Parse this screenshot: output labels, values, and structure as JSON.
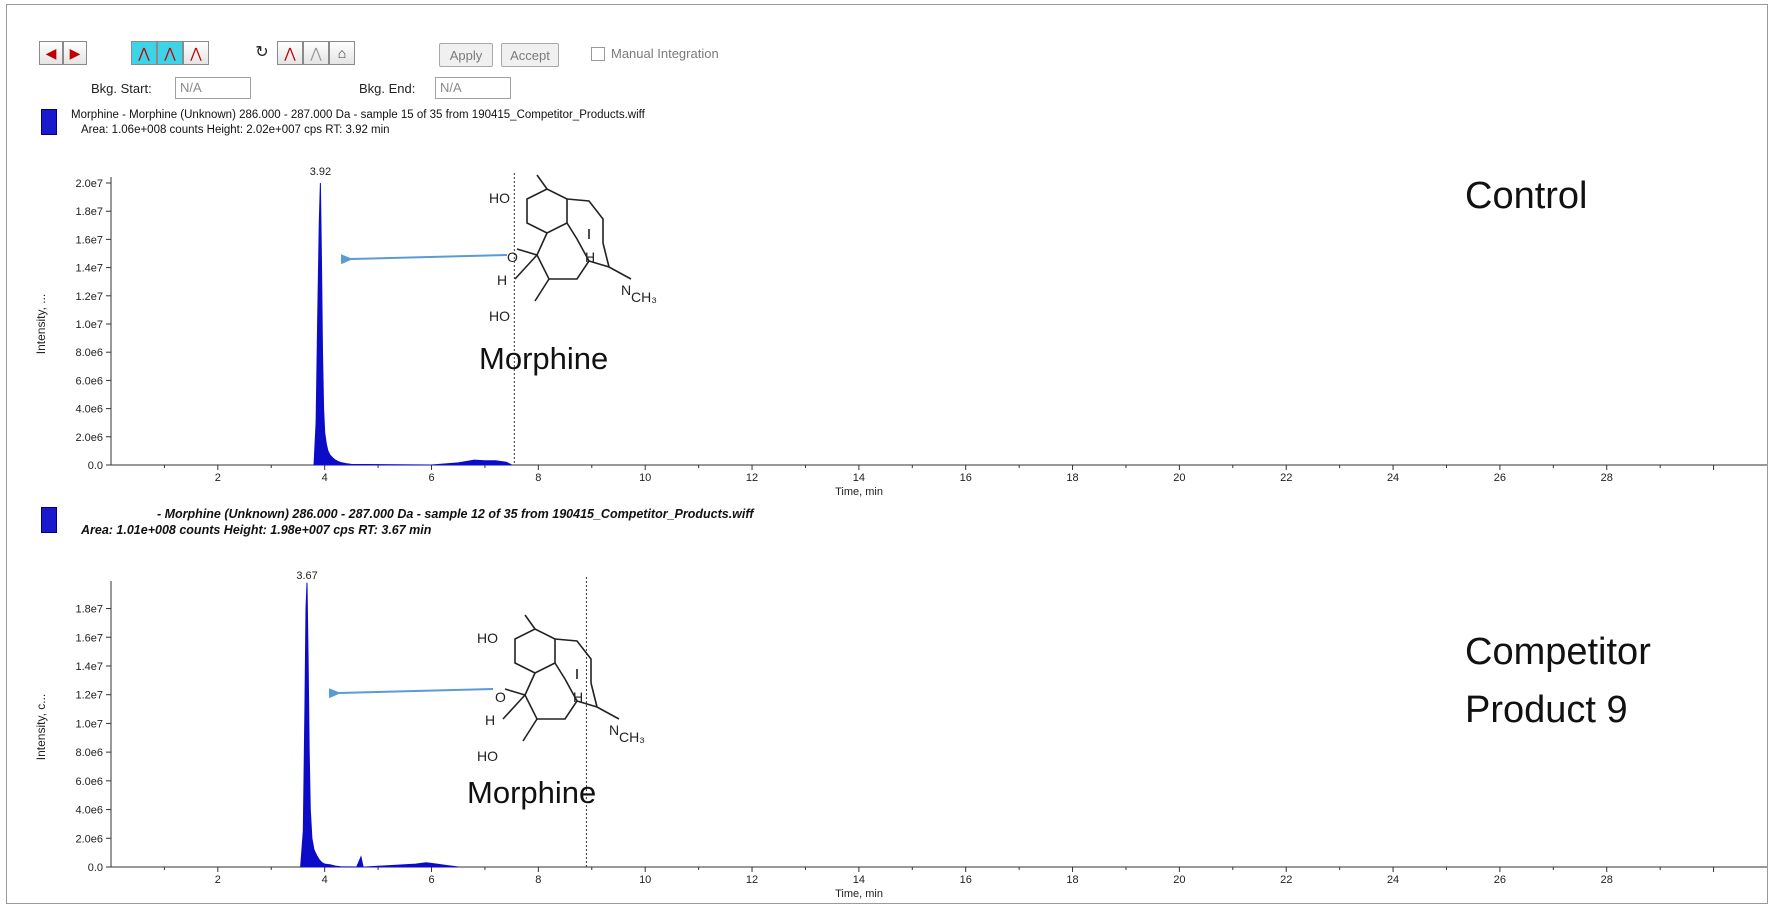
{
  "toolbar": {
    "apply_label": "Apply",
    "accept_label": "Accept",
    "manual_integration_label": "Manual Integration",
    "bkg_start_label": "Bkg. Start:",
    "bkg_start_value": "N/A",
    "bkg_end_label": "Bkg. End:",
    "bkg_end_value": "N/A"
  },
  "colors": {
    "trace": "#0b0bc8",
    "arrow": "#5b9bd5",
    "swatch": "#1a1acc"
  },
  "panels": [
    {
      "header_line1": "Morphine - Morphine (Unknown) 286.000 - 287.000 Da - sample 15 of 35 from 190415_Competitor_Products.wiff",
      "header_line2": "Area: 1.06e+008 counts  Height: 2.02e+007 cps  RT: 3.92 min",
      "side_label": "Control",
      "molecule_label": "Morphine"
    },
    {
      "header_line1": "- Morphine (Unknown) 286.000 - 287.000 Da - sample 12 of 35 from 190415_Competitor_Products.wiff",
      "header_line2": "Area: 1.01e+008 counts  Height: 1.98e+007 cps  RT: 3.67 min",
      "side_label_line1": "Competitor",
      "side_label_line2": "Product 9",
      "molecule_label": "Morphine"
    }
  ],
  "chart_data": [
    {
      "type": "line",
      "xlabel": "Time, min",
      "ylabel": "Intensity, ...",
      "xlim": [
        0,
        31
      ],
      "ylim": [
        0,
        20000000
      ],
      "xticks": [
        2,
        4,
        6,
        8,
        10,
        12,
        14,
        16,
        18,
        20,
        22,
        24,
        26,
        28
      ],
      "xtick_labels": [
        "2",
        "4",
        "6",
        "8",
        "10",
        "12",
        "14",
        "16",
        "18",
        "20",
        "22",
        "24",
        "26",
        "28"
      ],
      "yticks": [
        0,
        2000000,
        4000000,
        6000000,
        8000000,
        10000000,
        12000000,
        14000000,
        16000000,
        18000000,
        20000000
      ],
      "ytick_labels": [
        "0.0",
        "2.0e6",
        "4.0e6",
        "6.0e6",
        "8.0e6",
        "1.0e7",
        "1.2e7",
        "1.4e7",
        "1.6e7",
        "1.8e7",
        "2.0e7"
      ],
      "peak_label": "3.92",
      "peak_rt": 3.92,
      "marker_line_x": 7.55,
      "series": [
        {
          "x": [
            3.8,
            3.84,
            3.87,
            3.9,
            3.92,
            3.94,
            3.96,
            3.98,
            4.0,
            4.03,
            4.06,
            4.1,
            4.15,
            4.2,
            4.25,
            4.3,
            4.4,
            4.5,
            6.0,
            6.5,
            6.8,
            7.0,
            7.2,
            7.4,
            7.5
          ],
          "y": [
            0,
            3000000,
            10500000,
            17300000,
            20000000,
            14300000,
            8000000,
            4000000,
            2300000,
            1500000,
            1000000,
            700000,
            500000,
            350000,
            250000,
            180000,
            100000,
            40000,
            0,
            150000,
            350000,
            300000,
            300000,
            200000,
            0
          ]
        }
      ]
    },
    {
      "type": "line",
      "xlabel": "Time, min",
      "ylabel": "Intensity, c...",
      "xlim": [
        0,
        31
      ],
      "ylim": [
        0,
        19500000
      ],
      "xticks": [
        2,
        4,
        6,
        8,
        10,
        12,
        14,
        16,
        18,
        20,
        22,
        24,
        26,
        28
      ],
      "xtick_labels": [
        "2",
        "4",
        "6",
        "8",
        "10",
        "12",
        "14",
        "16",
        "18",
        "20",
        "22",
        "24",
        "26",
        "28"
      ],
      "yticks": [
        0,
        2000000,
        4000000,
        6000000,
        8000000,
        10000000,
        12000000,
        14000000,
        16000000,
        18000000
      ],
      "ytick_labels": [
        "0.0",
        "2.0e6",
        "4.0e6",
        "6.0e6",
        "8.0e6",
        "1.0e7",
        "1.2e7",
        "1.4e7",
        "1.6e7",
        "1.8e7"
      ],
      "peak_label": "3.67",
      "peak_rt": 3.67,
      "marker_line_x": 8.9,
      "series": [
        {
          "x": [
            3.55,
            3.6,
            3.63,
            3.65,
            3.67,
            3.69,
            3.71,
            3.73,
            3.76,
            3.8,
            3.85,
            3.9,
            3.95,
            4.0,
            4.1,
            4.2,
            4.3,
            4.6,
            4.68,
            4.72,
            4.76,
            5.7,
            5.9,
            6.1,
            6.3,
            6.5
          ],
          "y": [
            0,
            2500000,
            11000000,
            18000000,
            19800000,
            14500000,
            8000000,
            4000000,
            2000000,
            1200000,
            800000,
            500000,
            300000,
            200000,
            150000,
            60000,
            20000,
            0,
            700000,
            0,
            0,
            200000,
            300000,
            200000,
            100000,
            0
          ]
        }
      ]
    }
  ]
}
